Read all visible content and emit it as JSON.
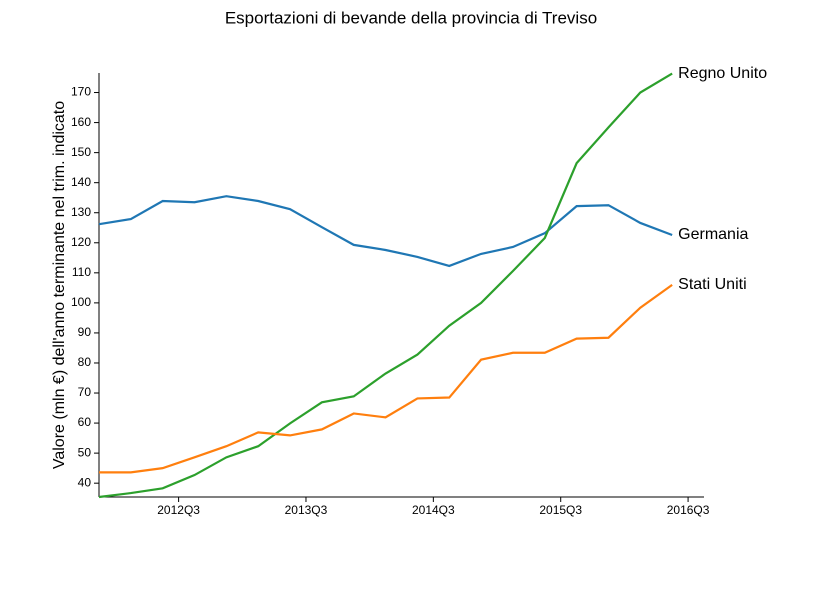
{
  "chart_data": {
    "type": "line",
    "title": "Esportazioni di bevande della provincia di Treviso",
    "y_label": "Valore (mln €) dell'anno terminante nel trim. indicato",
    "x": [
      2011.875,
      2012.125,
      2012.375,
      2012.625,
      2012.875,
      2013.125,
      2013.375,
      2013.625,
      2013.875,
      2014.125,
      2014.375,
      2014.625,
      2014.875,
      2015.125,
      2015.375,
      2015.625,
      2015.875,
      2016.125,
      2016.375
    ],
    "xlim": [
      2011.875,
      2016.625
    ],
    "xticks": [
      {
        "value": 2012.5,
        "label": "2012Q3"
      },
      {
        "value": 2013.5,
        "label": "2013Q3"
      },
      {
        "value": 2014.5,
        "label": "2014Q3"
      },
      {
        "value": 2015.5,
        "label": "2015Q3"
      },
      {
        "value": 2016.5,
        "label": "2016Q3"
      }
    ],
    "ylim": [
      35.4,
      176.5
    ],
    "yticks": [
      40,
      50,
      60,
      70,
      80,
      90,
      100,
      110,
      120,
      130,
      140,
      150,
      160,
      170
    ],
    "grid": false,
    "series": [
      {
        "name": "Germania",
        "color": "#1f77b4",
        "values": [
          126.2,
          127.9,
          133.9,
          133.5,
          135.5,
          133.9,
          131.2,
          125.2,
          119.3,
          117.6,
          115.3,
          112.3,
          116.3,
          118.6,
          123.2,
          132.2,
          132.5,
          126.6,
          122.6
        ]
      },
      {
        "name": "Regno Unito",
        "color": "#2ca02c",
        "values": [
          35.4,
          36.7,
          38.3,
          42.7,
          48.6,
          52.3,
          59.9,
          66.9,
          68.9,
          76.5,
          82.8,
          92.4,
          100.0,
          110.6,
          121.6,
          146.5,
          158.4,
          170.0,
          176.3
        ]
      },
      {
        "name": "Stati Uniti",
        "color": "#ff7f0e",
        "values": [
          43.6,
          43.6,
          45.0,
          48.6,
          52.3,
          56.9,
          55.9,
          57.9,
          63.2,
          61.9,
          68.2,
          68.5,
          81.1,
          83.4,
          83.4,
          88.1,
          88.4,
          98.4,
          106.0
        ]
      }
    ]
  }
}
